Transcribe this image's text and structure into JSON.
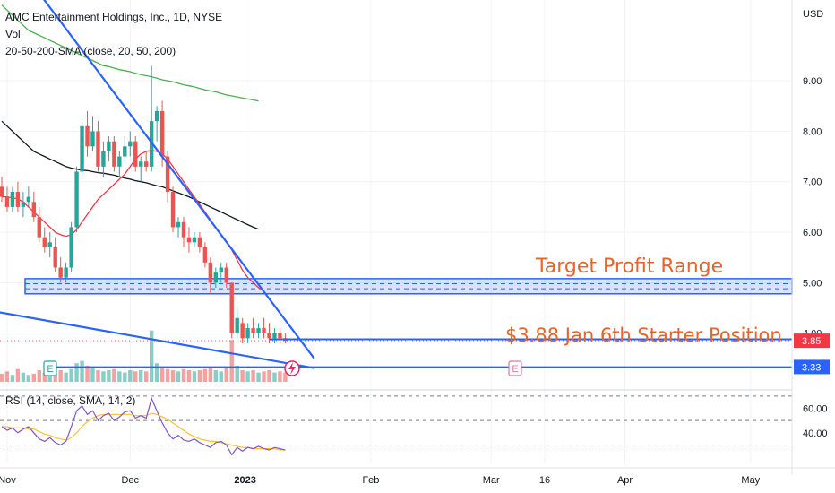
{
  "header": {
    "symbol_line": "AMC Entertainment Holdings, Inc., 1D, NYSE",
    "vol_label": "Vol",
    "sma_label": "20-50-200-SMA (close, 20, 50, 200)"
  },
  "rsi_panel": {
    "label": "RSI (14, close, SMA, 14, 2)"
  },
  "axis": {
    "currency": "USD",
    "price_ticks": [
      "9.00",
      "8.00",
      "7.00",
      "6.00",
      "5.00",
      "4.00"
    ],
    "rsi_ticks": [
      "60.00",
      "40.00"
    ],
    "date_ticks": [
      "Nov",
      "Dec",
      "2023",
      "Feb",
      "Mar",
      "16",
      "Apr",
      "May"
    ]
  },
  "price_tags": [
    {
      "label": "3.85",
      "color": "#f23645"
    },
    {
      "label": "3.33",
      "color": "#2962ff"
    }
  ],
  "annotations": {
    "target": "Target Profit Range",
    "starter": "$3.88 Jan 6th Starter Position",
    "earnings_marker": "E"
  },
  "colors": {
    "up": "#26a69a",
    "down": "#ef5350",
    "sma20": "#f23645",
    "sma50": "#131722",
    "sma200": "#4caf50",
    "trend": "#2962ff",
    "annotation": "#e8642a",
    "rsi": "#7e57c2",
    "rsi_ma": "#fbc02d"
  },
  "chart_data": {
    "type": "candlestick",
    "title": "AMC Entertainment Holdings, Inc., 1D, NYSE",
    "y_range": [
      3.0,
      10.6
    ],
    "candles": [
      {
        "o": 6.9,
        "h": 7.1,
        "l": 6.6,
        "c": 6.7
      },
      {
        "o": 6.7,
        "h": 6.9,
        "l": 6.4,
        "c": 6.5
      },
      {
        "o": 6.5,
        "h": 6.9,
        "l": 6.4,
        "c": 6.8
      },
      {
        "o": 6.8,
        "h": 7.0,
        "l": 6.4,
        "c": 6.5
      },
      {
        "o": 6.5,
        "h": 6.8,
        "l": 6.3,
        "c": 6.6
      },
      {
        "o": 6.6,
        "h": 6.9,
        "l": 6.5,
        "c": 6.7
      },
      {
        "o": 6.6,
        "h": 6.8,
        "l": 6.2,
        "c": 6.3
      },
      {
        "o": 6.3,
        "h": 6.5,
        "l": 5.8,
        "c": 5.9
      },
      {
        "o": 5.9,
        "h": 6.1,
        "l": 5.6,
        "c": 5.7
      },
      {
        "o": 5.7,
        "h": 6.0,
        "l": 5.5,
        "c": 5.8
      },
      {
        "o": 5.7,
        "h": 5.9,
        "l": 5.2,
        "c": 5.3
      },
      {
        "o": 5.3,
        "h": 5.5,
        "l": 5.0,
        "c": 5.1
      },
      {
        "o": 5.1,
        "h": 5.4,
        "l": 5.0,
        "c": 5.3
      },
      {
        "o": 5.3,
        "h": 6.2,
        "l": 5.2,
        "c": 6.1
      },
      {
        "o": 6.1,
        "h": 7.3,
        "l": 6.0,
        "c": 7.2
      },
      {
        "o": 7.2,
        "h": 8.2,
        "l": 7.1,
        "c": 8.1
      },
      {
        "o": 8.1,
        "h": 8.4,
        "l": 7.5,
        "c": 7.7
      },
      {
        "o": 7.7,
        "h": 8.3,
        "l": 7.6,
        "c": 8.0
      },
      {
        "o": 8.0,
        "h": 8.2,
        "l": 7.2,
        "c": 7.3
      },
      {
        "o": 7.3,
        "h": 7.8,
        "l": 7.1,
        "c": 7.6
      },
      {
        "o": 7.6,
        "h": 7.9,
        "l": 7.4,
        "c": 7.8
      },
      {
        "o": 7.8,
        "h": 7.9,
        "l": 7.2,
        "c": 7.3
      },
      {
        "o": 7.3,
        "h": 7.6,
        "l": 7.1,
        "c": 7.5
      },
      {
        "o": 7.5,
        "h": 7.9,
        "l": 7.4,
        "c": 7.7
      },
      {
        "o": 7.7,
        "h": 8.0,
        "l": 7.5,
        "c": 7.8
      },
      {
        "o": 7.8,
        "h": 7.9,
        "l": 7.2,
        "c": 7.3
      },
      {
        "o": 7.3,
        "h": 7.5,
        "l": 7.0,
        "c": 7.4
      },
      {
        "o": 7.4,
        "h": 7.6,
        "l": 7.2,
        "c": 7.3
      },
      {
        "o": 7.3,
        "h": 9.3,
        "l": 7.2,
        "c": 8.2
      },
      {
        "o": 8.2,
        "h": 8.5,
        "l": 7.8,
        "c": 8.4
      },
      {
        "o": 8.4,
        "h": 8.6,
        "l": 7.3,
        "c": 7.5
      },
      {
        "o": 7.5,
        "h": 7.6,
        "l": 6.6,
        "c": 6.8
      },
      {
        "o": 6.8,
        "h": 6.9,
        "l": 6.0,
        "c": 6.1
      },
      {
        "o": 6.1,
        "h": 6.3,
        "l": 5.9,
        "c": 6.2
      },
      {
        "o": 6.2,
        "h": 6.3,
        "l": 5.7,
        "c": 5.9
      },
      {
        "o": 5.9,
        "h": 6.1,
        "l": 5.6,
        "c": 5.8
      },
      {
        "o": 5.8,
        "h": 6.0,
        "l": 5.7,
        "c": 5.9
      },
      {
        "o": 5.9,
        "h": 6.0,
        "l": 5.6,
        "c": 5.7
      },
      {
        "o": 5.7,
        "h": 5.8,
        "l": 5.3,
        "c": 5.4
      },
      {
        "o": 5.4,
        "h": 5.5,
        "l": 4.8,
        "c": 5.0
      },
      {
        "o": 5.0,
        "h": 5.3,
        "l": 4.9,
        "c": 5.2
      },
      {
        "o": 5.2,
        "h": 5.4,
        "l": 5.0,
        "c": 5.3
      },
      {
        "o": 5.3,
        "h": 5.4,
        "l": 4.9,
        "c": 5.0
      },
      {
        "o": 5.0,
        "h": 5.0,
        "l": 3.9,
        "c": 4.0
      },
      {
        "o": 4.0,
        "h": 4.5,
        "l": 3.9,
        "c": 4.3
      },
      {
        "o": 4.2,
        "h": 4.3,
        "l": 3.8,
        "c": 3.9
      },
      {
        "o": 3.9,
        "h": 4.2,
        "l": 3.8,
        "c": 4.1
      },
      {
        "o": 4.1,
        "h": 4.3,
        "l": 3.9,
        "c": 4.0
      },
      {
        "o": 4.0,
        "h": 4.2,
        "l": 3.9,
        "c": 4.1
      },
      {
        "o": 4.1,
        "h": 4.3,
        "l": 3.9,
        "c": 4.0
      },
      {
        "o": 4.0,
        "h": 4.2,
        "l": 3.8,
        "c": 3.9
      },
      {
        "o": 3.9,
        "h": 4.1,
        "l": 3.8,
        "c": 4.0
      },
      {
        "o": 4.0,
        "h": 4.1,
        "l": 3.8,
        "c": 3.9
      },
      {
        "o": 3.9,
        "h": 4.0,
        "l": 3.8,
        "c": 3.85
      }
    ],
    "volume": [
      0.35,
      0.45,
      0.3,
      0.55,
      0.4,
      0.3,
      0.35,
      0.5,
      0.4,
      0.45,
      0.35,
      0.5,
      0.4,
      0.55,
      0.8,
      0.9,
      0.7,
      0.6,
      0.5,
      0.45,
      0.5,
      0.55,
      0.45,
      0.4,
      0.5,
      0.45,
      0.5,
      0.45,
      2.2,
      0.8,
      0.6,
      0.55,
      0.5,
      0.45,
      0.55,
      0.5,
      0.45,
      0.5,
      0.55,
      0.6,
      0.5,
      0.45,
      0.6,
      1.8,
      0.7,
      0.5,
      0.45,
      0.5,
      0.4,
      0.45,
      0.5,
      0.4,
      0.45,
      0.4
    ],
    "sma20": [
      6.7,
      6.7,
      6.68,
      6.66,
      6.6,
      6.5,
      6.4,
      6.3,
      6.2,
      6.1,
      6.0,
      5.95,
      5.92,
      5.95,
      6.05,
      6.2,
      6.35,
      6.5,
      6.65,
      6.75,
      6.85,
      6.95,
      7.05,
      7.15,
      7.3,
      7.45,
      7.55,
      7.6,
      7.62,
      7.6,
      7.55,
      7.45,
      7.3,
      7.15,
      7.0,
      6.85,
      6.7,
      6.55,
      6.4,
      6.25,
      6.1,
      5.95,
      5.8,
      5.65,
      5.45,
      5.25,
      5.1,
      5.0,
      4.9,
      4.85,
      null,
      null,
      null,
      null
    ],
    "sma50": [
      8.2,
      8.1,
      8.0,
      7.9,
      7.8,
      7.7,
      7.6,
      7.55,
      7.5,
      7.45,
      7.4,
      7.35,
      7.3,
      7.27,
      7.25,
      7.23,
      7.22,
      7.2,
      7.18,
      7.17,
      7.15,
      7.13,
      7.1,
      7.07,
      7.05,
      7.02,
      7.0,
      6.98,
      6.95,
      6.92,
      6.9,
      6.86,
      6.82,
      6.78,
      6.74,
      6.7,
      6.65,
      6.6,
      6.55,
      6.5,
      6.45,
      6.4,
      6.35,
      6.3,
      6.25,
      6.2,
      6.15,
      6.1,
      6.06,
      null,
      null,
      null,
      null,
      null
    ],
    "sma200": [
      10.5,
      10.4,
      10.3,
      10.2,
      10.1,
      10.0,
      9.95,
      9.9,
      9.85,
      9.8,
      9.75,
      9.7,
      9.65,
      9.6,
      9.55,
      9.5,
      9.45,
      9.4,
      9.35,
      9.3,
      9.28,
      9.25,
      9.22,
      9.2,
      9.18,
      9.15,
      9.12,
      9.1,
      9.08,
      9.05,
      9.02,
      9.0,
      8.98,
      8.95,
      8.92,
      8.9,
      8.88,
      8.85,
      8.82,
      8.8,
      8.78,
      8.75,
      8.72,
      8.7,
      8.68,
      8.66,
      8.64,
      8.62,
      8.6,
      null,
      null,
      null,
      null,
      null
    ],
    "rsi": [
      45,
      42,
      44,
      40,
      43,
      45,
      40,
      35,
      33,
      36,
      32,
      30,
      33,
      45,
      58,
      62,
      55,
      58,
      50,
      54,
      56,
      50,
      53,
      57,
      58,
      52,
      54,
      52,
      68,
      58,
      48,
      40,
      35,
      38,
      34,
      33,
      35,
      32,
      30,
      28,
      32,
      33,
      30,
      22,
      28,
      25,
      28,
      27,
      29,
      27,
      26,
      28,
      27,
      26
    ],
    "rsi_ma": [
      45,
      45,
      44,
      44,
      44,
      43,
      43,
      41,
      39,
      38,
      36,
      35,
      34,
      36,
      40,
      45,
      49,
      52,
      54,
      55,
      55,
      55,
      55,
      55,
      55,
      54,
      54,
      54,
      56,
      55,
      53,
      51,
      48,
      45,
      42,
      39,
      37,
      35,
      34,
      33,
      33,
      32,
      31,
      30,
      29,
      28,
      28,
      27,
      27,
      27,
      27,
      27,
      26,
      26
    ],
    "price_ticks": [
      9,
      8,
      7,
      6,
      5,
      4
    ],
    "rsi_range": [
      15,
      75
    ],
    "rsi_ticks": [
      60,
      40
    ],
    "rsi_levels": [
      70,
      50,
      30
    ],
    "target_zone": [
      4.78,
      5.08
    ],
    "target_lines": [
      4.88,
      4.98
    ],
    "starter_price": 3.88,
    "support_price": 3.33,
    "trendlines": [
      {
        "x1": -2,
        "y1": 12.0,
        "x2": 58.4,
        "y2": 3.5
      },
      {
        "x1": -5,
        "y1": 4.5,
        "x2": 58.4,
        "y2": 3.31
      }
    ],
    "date_ticks": [
      {
        "label": "Nov",
        "x": 1
      },
      {
        "label": "Dec",
        "x": 24
      },
      {
        "label": "2023",
        "x": 45.5
      },
      {
        "label": "Feb",
        "x": 69
      },
      {
        "label": "Mar",
        "x": 91.5
      },
      {
        "label": "16",
        "x": 101.5
      },
      {
        "label": "Apr",
        "x": 116.5
      },
      {
        "label": "May",
        "x": 140
      }
    ],
    "current_price": 3.85
  }
}
